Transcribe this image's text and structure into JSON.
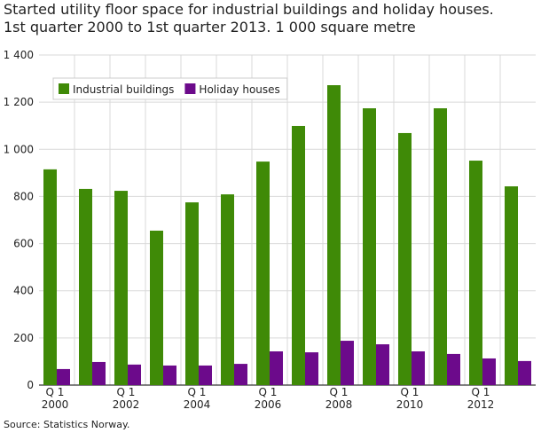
{
  "chart_data": {
    "type": "bar",
    "title": "Started utility floor space for industrial buildings and holiday houses.",
    "subtitle": "1st quarter 2000 to 1st quarter 2013. 1 000 square metre",
    "source": "Source: Statistics Norway.",
    "categories": [
      "Q 1\n2000",
      null,
      "Q 1\n2002",
      null,
      "Q 1\n2004",
      null,
      "Q 1\n2006",
      null,
      "Q 1\n2008",
      null,
      "Q 1\n2010",
      null,
      "Q 1\n2012",
      null
    ],
    "series": [
      {
        "name": "Industrial buildings",
        "color": "#3f8a07",
        "values": [
          915,
          832,
          824,
          655,
          775,
          809,
          948,
          1099,
          1272,
          1174,
          1069,
          1174,
          952,
          843
        ]
      },
      {
        "name": "Holiday houses",
        "color": "#6c0a8b",
        "values": [
          68,
          98,
          87,
          83,
          83,
          90,
          143,
          139,
          188,
          173,
          143,
          132,
          113,
          102
        ]
      }
    ],
    "ylim": [
      0,
      1400
    ],
    "yticks": [
      0,
      200,
      400,
      600,
      800,
      {
        "value": 1000,
        "label": "1 000"
      },
      {
        "value": 1200,
        "label": "1 200"
      },
      {
        "value": 1400,
        "label": "1 400"
      }
    ],
    "grid": true,
    "legend": "top-left"
  }
}
